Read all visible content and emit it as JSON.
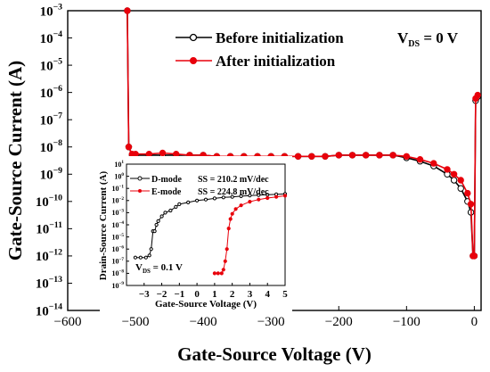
{
  "chart_data": [
    {
      "type": "line",
      "xlabel": "Gate-Source Voltage (V)",
      "ylabel": "Gate-Source Current (A)",
      "xlim": [
        -600,
        10
      ],
      "ylim": [
        1e-14,
        0.001
      ],
      "yscale": "log",
      "xticks": [
        -600,
        -500,
        -400,
        -300,
        -200,
        -100,
        0
      ],
      "xtick_labels": [
        "−600",
        "−500",
        "−400",
        "−300",
        "−200",
        "−100",
        "0"
      ],
      "yticks": [
        -14,
        -13,
        -12,
        -11,
        -10,
        -9,
        -8,
        -7,
        -6,
        -5,
        -4,
        -3
      ],
      "legend": {
        "placement": "top-right",
        "annotation": "V_DS = 0 V"
      },
      "series": [
        {
          "name": "Before initialization",
          "color": "#000000",
          "marker": "open-circle",
          "x": [
            -512,
            -510,
            -505,
            -500,
            -480,
            -460,
            -440,
            -420,
            -400,
            -380,
            -360,
            -340,
            -320,
            -300,
            -280,
            -260,
            -240,
            -220,
            -200,
            -180,
            -160,
            -140,
            -120,
            -100,
            -80,
            -60,
            -40,
            -30,
            -20,
            -10,
            -5,
            -2,
            0,
            2,
            5
          ],
          "y": [
            0.001,
            1e-08,
            5e-09,
            5e-09,
            5e-09,
            5e-09,
            5e-09,
            5e-09,
            5e-09,
            4.5e-09,
            4.5e-09,
            4.5e-09,
            4.5e-09,
            4.5e-09,
            4.5e-09,
            4.5e-09,
            4.5e-09,
            4.5e-09,
            5e-09,
            5e-09,
            5e-09,
            5e-09,
            5e-09,
            4e-09,
            3e-09,
            2e-09,
            1e-09,
            6e-10,
            3e-10,
            1e-10,
            4e-11,
            1e-12,
            1e-12,
            5e-07,
            7e-07
          ]
        },
        {
          "name": "After initialization",
          "color": "#e8000b",
          "marker": "filled-circle",
          "x": [
            -512,
            -510,
            -505,
            -500,
            -480,
            -460,
            -440,
            -420,
            -400,
            -380,
            -360,
            -340,
            -320,
            -300,
            -280,
            -260,
            -240,
            -220,
            -200,
            -180,
            -160,
            -140,
            -120,
            -100,
            -80,
            -60,
            -40,
            -30,
            -20,
            -10,
            -5,
            -2,
            0,
            2,
            5
          ],
          "y": [
            0.001,
            1e-08,
            5.5e-09,
            5.5e-09,
            5.5e-09,
            6e-09,
            5.5e-09,
            5e-09,
            5e-09,
            4.5e-09,
            4.5e-09,
            4.5e-09,
            4.5e-09,
            4.5e-09,
            4.5e-09,
            4.5e-09,
            4.5e-09,
            4.5e-09,
            5e-09,
            5e-09,
            5e-09,
            5e-09,
            5e-09,
            4.5e-09,
            3.5e-09,
            2.5e-09,
            1.5e-09,
            1e-09,
            6e-10,
            2e-10,
            8e-11,
            1e-12,
            1e-12,
            6e-07,
            8e-07
          ]
        }
      ]
    },
    {
      "type": "line",
      "placement": "inset",
      "xlabel": "Gate-Source Voltage (V)",
      "ylabel": "Drain-Source Current (A)",
      "xlim": [
        -4,
        5
      ],
      "ylim": [
        1e-09,
        10
      ],
      "yscale": "log",
      "xticks": [
        -3,
        -2,
        -1,
        0,
        1,
        2,
        3,
        4,
        5
      ],
      "xtick_labels": [
        "−3",
        "−2",
        "−1",
        "0",
        "1",
        "2",
        "3",
        "4",
        "5"
      ],
      "yticks": [
        -9,
        -8,
        -7,
        -6,
        -5,
        -4,
        -3,
        -2,
        -1,
        0,
        1
      ],
      "annotation": "V_DS = 0.1 V",
      "series": [
        {
          "name": "D-mode",
          "ss": "SS = 210.2 mV/dec",
          "color": "#000000",
          "marker": "open-circle",
          "x": [
            -3.5,
            -3.2,
            -2.9,
            -2.7,
            -2.6,
            -2.5,
            -2.4,
            -2.3,
            -2.2,
            -2.0,
            -1.8,
            -1.5,
            -1.2,
            -1.0,
            -0.5,
            0,
            0.5,
            1,
            1.5,
            2,
            2.5,
            3,
            3.5,
            4,
            4.5,
            5
          ],
          "y": [
            2e-07,
            2e-07,
            2e-07,
            3e-07,
            1e-06,
            3e-05,
            3e-05,
            0.0001,
            0.0002,
            0.0005,
            0.001,
            0.0015,
            0.003,
            0.005,
            0.007,
            0.01,
            0.012,
            0.015,
            0.018,
            0.02,
            0.023,
            0.026,
            0.028,
            0.03,
            0.032,
            0.035
          ]
        },
        {
          "name": "E-mode",
          "ss": "SS = 224.8 mV/dec",
          "color": "#e8000b",
          "marker": "filled-circle",
          "x": [
            1.0,
            1.2,
            1.4,
            1.5,
            1.6,
            1.7,
            1.8,
            1.9,
            2.0,
            2.2,
            2.5,
            3.0,
            3.5,
            4.0,
            4.5,
            5.0
          ],
          "y": [
            1e-08,
            1e-08,
            1e-08,
            2e-08,
            1e-07,
            1e-06,
            5e-05,
            0.0003,
            0.0008,
            0.002,
            0.004,
            0.008,
            0.012,
            0.016,
            0.02,
            0.025
          ]
        }
      ]
    }
  ]
}
